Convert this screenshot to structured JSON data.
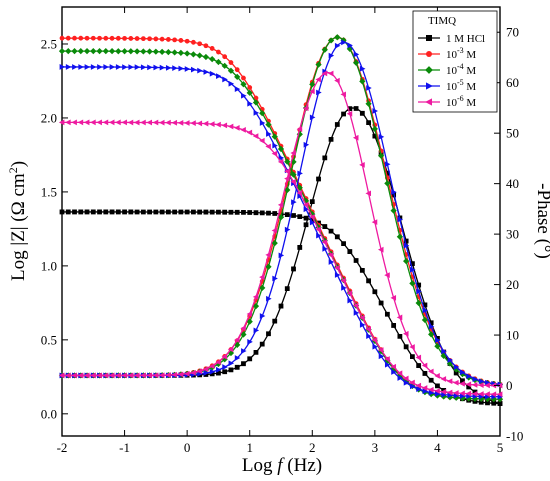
{
  "chart_data": {
    "type": "line",
    "xlabel": "Log f (Hz)",
    "xlabel_main": "Log ",
    "xlabel_var": "f",
    "xlabel_unit": " (Hz)",
    "ylabel_left": "Log |Z| (Ω cm²)",
    "ylabel_left_main": "Log |Z| (Ω cm",
    "ylabel_left_sup": "2",
    "ylabel_left_close": ")",
    "ylabel_right": "-Phase (°)",
    "xlim": [
      -2,
      5
    ],
    "ylim_left": [
      -0.15,
      2.75
    ],
    "ylim_right": [
      -10,
      75
    ],
    "xticks": [
      -2,
      -1,
      0,
      1,
      2,
      3,
      4,
      5
    ],
    "yticks_left": [
      "0.0",
      "0.5",
      "1.0",
      "1.5",
      "2.0",
      "2.5"
    ],
    "yticks_right": [
      "-10",
      "0",
      "10",
      "20",
      "30",
      "40",
      "50",
      "60",
      "70"
    ],
    "legend": {
      "title": "TIMQ",
      "position": "top-right"
    },
    "series": [
      {
        "name": "1 M HCl",
        "label_parts": [
          "1 M HCl"
        ],
        "color": "#000000",
        "marker": "square",
        "modulus": {
          "Rs": 1.15,
          "Rct": 22.0,
          "tau": 0.0006,
          "n": 0.9
        },
        "phase": {
          "peak_logf": 2.65,
          "peak_deg": 55,
          "width_low": 0.7,
          "width_high": 0.75,
          "high_f_floor": -4
        }
      },
      {
        "name": "10-3 M",
        "label_parts": [
          "10",
          "-3",
          " M"
        ],
        "color": "#ff2020",
        "marker": "circle",
        "modulus": {
          "Rs": 1.25,
          "Rct": 345.0,
          "tau": 0.03,
          "n": 0.92
        },
        "phase": {
          "peak_logf": 2.4,
          "peak_deg": 69,
          "width_low": 0.75,
          "width_high": 0.78,
          "high_f_floor": 0
        }
      },
      {
        "name": "10-4 M",
        "label_parts": [
          "10",
          "-4",
          " M"
        ],
        "color": "#0a8a0a",
        "marker": "diamond",
        "modulus": {
          "Rs": 1.25,
          "Rct": 282.0,
          "tau": 0.025,
          "n": 0.92
        },
        "phase": {
          "peak_logf": 2.4,
          "peak_deg": 69,
          "width_low": 0.73,
          "width_high": 0.76,
          "high_f_floor": 0
        }
      },
      {
        "name": "10-5 M",
        "label_parts": [
          "10",
          "-5",
          " M"
        ],
        "color": "#1010ee",
        "marker": "triangle-right",
        "modulus": {
          "Rs": 1.3,
          "Rct": 220.0,
          "tau": 0.022,
          "n": 0.92
        },
        "phase": {
          "peak_logf": 2.5,
          "peak_deg": 68,
          "width_low": 0.7,
          "width_high": 0.74,
          "high_f_floor": 0
        }
      },
      {
        "name": "10-6 M",
        "label_parts": [
          "10",
          "-6",
          " M"
        ],
        "color": "#ee1aa0",
        "marker": "triangle-left",
        "modulus": {
          "Rs": 1.35,
          "Rct": 92.0,
          "tau": 0.0075,
          "n": 0.92
        },
        "phase": {
          "peak_logf": 2.25,
          "peak_deg": 62,
          "width_low": 0.7,
          "width_high": 0.65,
          "high_f_floor": 0
        }
      }
    ]
  }
}
